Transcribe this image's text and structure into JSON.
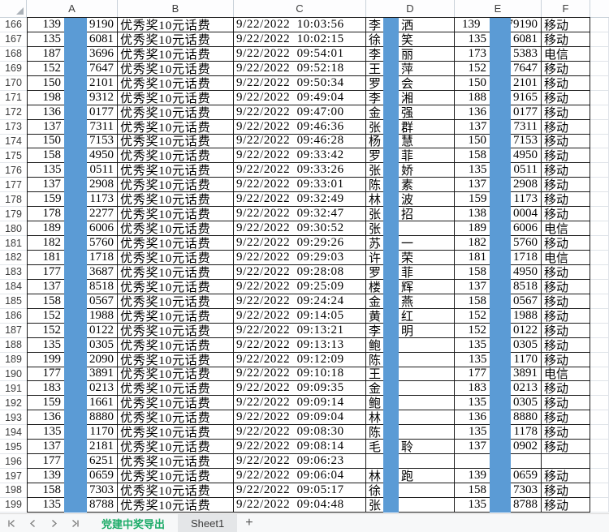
{
  "sheet": {
    "column_headers": [
      "A",
      "B",
      "C",
      "D",
      "E",
      "F"
    ],
    "first_row_number": 166,
    "rows": [
      {
        "n": "166",
        "a_prefix": "139",
        "a_suffix": "9190",
        "prize": "优秀奖10元话费",
        "time": "9/22/2022 10:03:56",
        "d_first": "李",
        "d_last": "洒",
        "e_prefix": "139",
        "e_suffix": "79190",
        "carrier": "移动"
      },
      {
        "n": "167",
        "a_prefix": "135",
        "a_suffix": "6081",
        "prize": "优秀奖10元话费",
        "time": "9/22/2022 10:02:15",
        "d_first": "徐",
        "d_last": "笑",
        "e_prefix": "135",
        "e_suffix": "6081",
        "carrier": "移动"
      },
      {
        "n": "168",
        "a_prefix": "187",
        "a_suffix": "3696",
        "prize": "优秀奖10元话费",
        "time": "9/22/2022 09:54:01",
        "d_first": "李",
        "d_last": "丽",
        "e_prefix": "173",
        "e_suffix": "5383",
        "carrier": "电信"
      },
      {
        "n": "169",
        "a_prefix": "152",
        "a_suffix": "7647",
        "prize": "优秀奖10元话费",
        "time": "9/22/2022 09:52:18",
        "d_first": "王",
        "d_last": "萍",
        "e_prefix": "152",
        "e_suffix": "7647",
        "carrier": "移动"
      },
      {
        "n": "170",
        "a_prefix": "150",
        "a_suffix": "2101",
        "prize": "优秀奖10元话费",
        "time": "9/22/2022 09:50:34",
        "d_first": "罗",
        "d_last": "会",
        "e_prefix": "150",
        "e_suffix": "2101",
        "carrier": "移动"
      },
      {
        "n": "171",
        "a_prefix": "198",
        "a_suffix": "9312",
        "prize": "优秀奖10元话费",
        "time": "9/22/2022 09:49:04",
        "d_first": "李",
        "d_last": "湘",
        "e_prefix": "188",
        "e_suffix": "9165",
        "carrier": "移动"
      },
      {
        "n": "172",
        "a_prefix": "136",
        "a_suffix": "0177",
        "prize": "优秀奖10元话费",
        "time": "9/22/2022 09:47:00",
        "d_first": "金",
        "d_last": "强",
        "e_prefix": "136",
        "e_suffix": "0177",
        "carrier": "移动"
      },
      {
        "n": "173",
        "a_prefix": "137",
        "a_suffix": "7311",
        "prize": "优秀奖10元话费",
        "time": "9/22/2022 09:46:36",
        "d_first": "张",
        "d_last": "群",
        "e_prefix": "137",
        "e_suffix": "7311",
        "carrier": "移动"
      },
      {
        "n": "174",
        "a_prefix": "150",
        "a_suffix": "7153",
        "prize": "优秀奖10元话费",
        "time": "9/22/2022 09:46:28",
        "d_first": "杨",
        "d_last": "慧",
        "e_prefix": "150",
        "e_suffix": "7153",
        "carrier": "移动"
      },
      {
        "n": "175",
        "a_prefix": "158",
        "a_suffix": "4950",
        "prize": "优秀奖10元话费",
        "time": "9/22/2022 09:33:42",
        "d_first": "罗",
        "d_last": "菲",
        "e_prefix": "158",
        "e_suffix": "4950",
        "carrier": "移动"
      },
      {
        "n": "176",
        "a_prefix": "135",
        "a_suffix": "0511",
        "prize": "优秀奖10元话费",
        "time": "9/22/2022 09:33:26",
        "d_first": "张",
        "d_last": "娇",
        "e_prefix": "135",
        "e_suffix": "0511",
        "carrier": "移动"
      },
      {
        "n": "177",
        "a_prefix": "137",
        "a_suffix": "2908",
        "prize": "优秀奖10元话费",
        "time": "9/22/2022 09:33:01",
        "d_first": "陈",
        "d_last": "素",
        "e_prefix": "137",
        "e_suffix": "2908",
        "carrier": "移动"
      },
      {
        "n": "178",
        "a_prefix": "159",
        "a_suffix": "1173",
        "prize": "优秀奖10元话费",
        "time": "9/22/2022 09:32:49",
        "d_first": "林",
        "d_last": "波",
        "e_prefix": "159",
        "e_suffix": "1173",
        "carrier": "移动"
      },
      {
        "n": "179",
        "a_prefix": "178",
        "a_suffix": "2277",
        "prize": "优秀奖10元话费",
        "time": "9/22/2022 09:32:47",
        "d_first": "张",
        "d_last": "招",
        "e_prefix": "138",
        "e_suffix": "0004",
        "carrier": "移动"
      },
      {
        "n": "180",
        "a_prefix": "189",
        "a_suffix": "6006",
        "prize": "优秀奖10元话费",
        "time": "9/22/2022 09:30:52",
        "d_first": "张",
        "d_last": "",
        "e_prefix": "189",
        "e_suffix": "6006",
        "carrier": "电信"
      },
      {
        "n": "181",
        "a_prefix": "182",
        "a_suffix": "5760",
        "prize": "优秀奖10元话费",
        "time": "9/22/2022 09:29:26",
        "d_first": "苏",
        "d_last": "一",
        "e_prefix": "182",
        "e_suffix": "5760",
        "carrier": "移动"
      },
      {
        "n": "182",
        "a_prefix": "181",
        "a_suffix": "1718",
        "prize": "优秀奖10元话费",
        "time": "9/22/2022 09:29:03",
        "d_first": "许",
        "d_last": "荣",
        "e_prefix": "181",
        "e_suffix": "1718",
        "carrier": "电信"
      },
      {
        "n": "183",
        "a_prefix": "177",
        "a_suffix": "3687",
        "prize": "优秀奖10元话费",
        "time": "9/22/2022 09:28:08",
        "d_first": "罗",
        "d_last": "菲",
        "e_prefix": "158",
        "e_suffix": "4950",
        "carrier": "移动"
      },
      {
        "n": "184",
        "a_prefix": "137",
        "a_suffix": "8518",
        "prize": "优秀奖10元话费",
        "time": "9/22/2022 09:25:09",
        "d_first": "楼",
        "d_last": "辉",
        "e_prefix": "137",
        "e_suffix": "8518",
        "carrier": "移动"
      },
      {
        "n": "185",
        "a_prefix": "158",
        "a_suffix": "0567",
        "prize": "优秀奖10元话费",
        "time": "9/22/2022 09:24:24",
        "d_first": "金",
        "d_last": "燕",
        "e_prefix": "158",
        "e_suffix": "0567",
        "carrier": "移动"
      },
      {
        "n": "186",
        "a_prefix": "152",
        "a_suffix": "1988",
        "prize": "优秀奖10元话费",
        "time": "9/22/2022 09:14:05",
        "d_first": "黄",
        "d_last": "红",
        "e_prefix": "152",
        "e_suffix": "1988",
        "carrier": "移动"
      },
      {
        "n": "187",
        "a_prefix": "152",
        "a_suffix": "0122",
        "prize": "优秀奖10元话费",
        "time": "9/22/2022 09:13:21",
        "d_first": "李",
        "d_last": "明",
        "e_prefix": "152",
        "e_suffix": "0122",
        "carrier": "移动"
      },
      {
        "n": "188",
        "a_prefix": "135",
        "a_suffix": "0305",
        "prize": "优秀奖10元话费",
        "time": "9/22/2022 09:13:13",
        "d_first": "鲍",
        "d_last": "",
        "e_prefix": "135",
        "e_suffix": "0305",
        "carrier": "移动"
      },
      {
        "n": "189",
        "a_prefix": "199",
        "a_suffix": "2090",
        "prize": "优秀奖10元话费",
        "time": "9/22/2022 09:12:09",
        "d_first": "陈",
        "d_last": "",
        "e_prefix": "135",
        "e_suffix": "1170",
        "carrier": "移动"
      },
      {
        "n": "190",
        "a_prefix": "177",
        "a_suffix": "3891",
        "prize": "优秀奖10元话费",
        "time": "9/22/2022 09:10:18",
        "d_first": "王",
        "d_last": "",
        "e_prefix": "177",
        "e_suffix": "3891",
        "carrier": "电信"
      },
      {
        "n": "191",
        "a_prefix": "183",
        "a_suffix": "0213",
        "prize": "优秀奖10元话费",
        "time": "9/22/2022 09:09:35",
        "d_first": "金",
        "d_last": "",
        "e_prefix": "183",
        "e_suffix": "0213",
        "carrier": "移动"
      },
      {
        "n": "192",
        "a_prefix": "159",
        "a_suffix": "1661",
        "prize": "优秀奖10元话费",
        "time": "9/22/2022 09:09:14",
        "d_first": "鲍",
        "d_last": "",
        "e_prefix": "135",
        "e_suffix": "0305",
        "carrier": "移动"
      },
      {
        "n": "193",
        "a_prefix": "136",
        "a_suffix": "8880",
        "prize": "优秀奖10元话费",
        "time": "9/22/2022 09:09:04",
        "d_first": "林",
        "d_last": "",
        "e_prefix": "136",
        "e_suffix": "8880",
        "carrier": "移动"
      },
      {
        "n": "194",
        "a_prefix": "135",
        "a_suffix": "1170",
        "prize": "优秀奖10元话费",
        "time": "9/22/2022 09:08:30",
        "d_first": "陈",
        "d_last": "",
        "e_prefix": "135",
        "e_suffix": "1178",
        "carrier": "移动"
      },
      {
        "n": "195",
        "a_prefix": "137",
        "a_suffix": "2181",
        "prize": "优秀奖10元话费",
        "time": "9/22/2022 09:08:14",
        "d_first": "毛",
        "d_last": "聆",
        "e_prefix": "137",
        "e_suffix": "0902",
        "carrier": "移动"
      },
      {
        "n": "196",
        "a_prefix": "177",
        "a_suffix": "6251",
        "prize": "优秀奖10元话费",
        "time": "9/22/2022 09:06:23",
        "d_first": "",
        "d_last": "",
        "e_prefix": "",
        "e_suffix": "",
        "carrier": ""
      },
      {
        "n": "197",
        "a_prefix": "139",
        "a_suffix": "0659",
        "prize": "优秀奖10元话费",
        "time": "9/22/2022 09:06:04",
        "d_first": "林",
        "d_last": "跑",
        "e_prefix": "139",
        "e_suffix": "0659",
        "carrier": "移动"
      },
      {
        "n": "198",
        "a_prefix": "158",
        "a_suffix": "7303",
        "prize": "优秀奖10元话费",
        "time": "9/22/2022 09:05:17",
        "d_first": "徐",
        "d_last": "",
        "e_prefix": "158",
        "e_suffix": "7303",
        "carrier": "移动"
      },
      {
        "n": "199",
        "a_prefix": "135",
        "a_suffix": "8788",
        "prize": "优秀奖10元话费",
        "time": "9/22/2022 09:04:48",
        "d_first": "张",
        "d_last": "",
        "e_prefix": "135",
        "e_suffix": "8788",
        "carrier": "移动"
      }
    ]
  },
  "tabbar": {
    "active_tab": "党建中奖导出",
    "other_tab": "Sheet1",
    "add_label": "+"
  },
  "colors": {
    "redaction_blue": "#5b9bd5",
    "active_tab_green": "#1cab68",
    "table_border": "#1a1a1a"
  }
}
